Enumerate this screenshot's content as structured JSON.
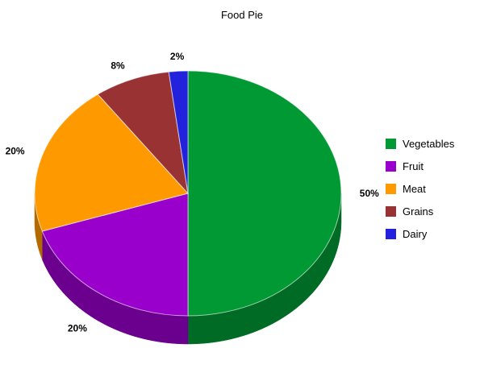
{
  "chart_data": {
    "type": "pie",
    "style": "3d",
    "title": "Food Pie",
    "legend_position": "right",
    "slices": [
      {
        "label": "Vegetables",
        "value": 50,
        "display": "50%",
        "color": "#009933",
        "side_color": "#006b24"
      },
      {
        "label": "Fruit",
        "value": 20,
        "display": "20%",
        "color": "#9900cc",
        "side_color": "#6b008f"
      },
      {
        "label": "Meat",
        "value": 20,
        "display": "20%",
        "color": "#ff9900",
        "side_color": "#b36b00"
      },
      {
        "label": "Grains",
        "value": 8,
        "display": "8%",
        "color": "#993333",
        "side_color": "#6b2424"
      },
      {
        "label": "Dairy",
        "value": 2,
        "display": "2%",
        "color": "#2222dd",
        "side_color": "#17179a"
      }
    ]
  }
}
